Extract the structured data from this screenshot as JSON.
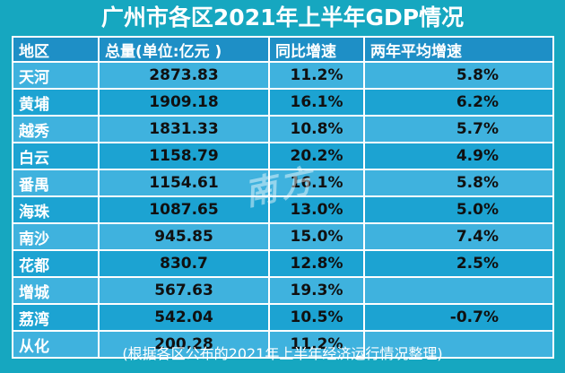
{
  "title": "广州市各区2021年上半年GDP情况",
  "headers": {
    "district": "地区",
    "total": "总量(单位:亿元 )",
    "yoy": "同比增速",
    "avg": "两年平均增速"
  },
  "rows": [
    {
      "district": "天河",
      "total": "2873.83",
      "yoy": "11.2%",
      "avg": "5.8%"
    },
    {
      "district": "黄埔",
      "total": "1909.18",
      "yoy": "16.1%",
      "avg": "6.2%"
    },
    {
      "district": "越秀",
      "total": "1831.33",
      "yoy": "10.8%",
      "avg": "5.7%"
    },
    {
      "district": "白云",
      "total": "1158.79",
      "yoy": "20.2%",
      "avg": "4.9%"
    },
    {
      "district": "番禺",
      "total": "1154.61",
      "yoy": "16.1%",
      "avg": "5.8%"
    },
    {
      "district": "海珠",
      "total": "1087.65",
      "yoy": "13.0%",
      "avg": "5.0%"
    },
    {
      "district": "南沙",
      "total": "945.85",
      "yoy": "15.0%",
      "avg": "7.4%"
    },
    {
      "district": "花都",
      "total": "830.7",
      "yoy": "12.8%",
      "avg": "2.5%"
    },
    {
      "district": "增城",
      "total": "567.63",
      "yoy": "19.3%",
      "avg": ""
    },
    {
      "district": "荔湾",
      "total": "542.04",
      "yoy": "10.5%",
      "avg": "-0.7%"
    },
    {
      "district": "从化",
      "total": "200.28",
      "yoy": "11.2%",
      "avg": ""
    }
  ],
  "watermark": "南方",
  "footer": "(根据各区公布的2021年上半年经济运行情况整理)"
}
